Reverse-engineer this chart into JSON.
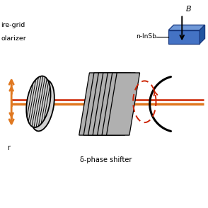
{
  "bg_color": "#ffffff",
  "orange": "#E07820",
  "red": "#CC2200",
  "gray_fill": "#B0B0B0",
  "gray_light": "#D0D0D0",
  "gray_dark": "#404040",
  "blue_front": "#4472C4",
  "blue_top": "#7099D8",
  "blue_side": "#2255A0",
  "black": "#000000",
  "label_wg1": "ire-grid",
  "label_wg2": "olarizer",
  "label_delta": "δ-phase shifter",
  "label_nInSb": "n-InSb",
  "label_B": "B",
  "label_r": "r"
}
